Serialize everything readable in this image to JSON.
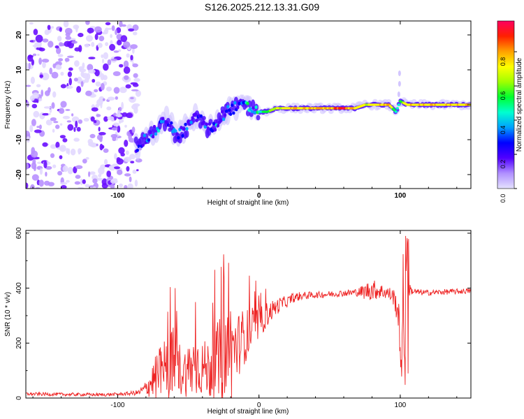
{
  "title": "S126.2025.212.13.31.G09",
  "chart_data": [
    {
      "type": "heatmap",
      "xlabel": "Height of straight line (km)",
      "ylabel": "Frequency (Hz)",
      "xlim": [
        -165,
        150
      ],
      "ylim": [
        -24,
        24
      ],
      "x_ticks": [
        -100,
        0,
        100
      ],
      "y_ticks": [
        -20,
        -10,
        0,
        10,
        20
      ],
      "colorbar": {
        "label": "Normalized spectral amplitude",
        "range": [
          0,
          1
        ],
        "ticks": [
          "0.0",
          "0.2",
          "0.4",
          "0.6",
          "0.8"
        ],
        "colormap": [
          "#e4e2ff",
          "#b090ff",
          "#5000ff",
          "#0000ff",
          "#00a0ff",
          "#00ffd0",
          "#00ff30",
          "#a0ff00",
          "#ffff00",
          "#ffa000",
          "#ff2000",
          "#ff0060"
        ]
      },
      "ridge_frequency_by_height": {
        "x": [
          -87,
          -80,
          -72,
          -65,
          -58,
          -50,
          -43,
          -36,
          -30,
          -24,
          -18,
          -12,
          -6,
          0,
          6,
          12,
          20,
          30,
          40,
          50,
          60,
          68,
          75,
          85,
          92,
          97,
          100,
          105,
          115,
          130,
          150
        ],
        "y": [
          -12,
          -10,
          -7,
          -4,
          -9,
          -6,
          -3,
          -7,
          -6,
          -2,
          -1,
          0,
          -1,
          -2,
          -2,
          -1,
          -1,
          -1,
          -1,
          -1,
          -1,
          -1,
          0,
          0,
          0,
          -2,
          1,
          0,
          0,
          0,
          0
        ],
        "amplitude": [
          0.25,
          0.3,
          0.35,
          0.35,
          0.3,
          0.3,
          0.3,
          0.3,
          0.35,
          0.35,
          0.35,
          0.35,
          0.5,
          0.45,
          0.55,
          0.7,
          0.75,
          0.75,
          0.8,
          0.8,
          0.9,
          0.75,
          0.7,
          0.75,
          0.8,
          0.45,
          0.55,
          0.75,
          0.75,
          0.75,
          0.75
        ]
      },
      "noise_region": {
        "x": [
          -165,
          -85
        ],
        "y": [
          -24,
          24
        ]
      }
    },
    {
      "type": "line",
      "xlabel": "Height of straight line (km)",
      "ylabel": "SNR (10 * v/v)",
      "xlim": [
        -165,
        150
      ],
      "ylim": [
        0,
        610
      ],
      "x_ticks": [
        -100,
        0,
        100
      ],
      "y_ticks": [
        0,
        200,
        400,
        600
      ],
      "series": [
        {
          "color": "#ee2222",
          "x": [
            -165,
            -150,
            -130,
            -110,
            -95,
            -85,
            -80,
            -76,
            -72,
            -68,
            -64,
            -60,
            -56,
            -52,
            -48,
            -44,
            -40,
            -36,
            -32,
            -28,
            -24,
            -20,
            -16,
            -12,
            -8,
            -4,
            0,
            4,
            8,
            12,
            16,
            20,
            24,
            30,
            40,
            50,
            60,
            70,
            75,
            80,
            85,
            90,
            95,
            98,
            100,
            101,
            102,
            103,
            104,
            105,
            106,
            108,
            112,
            120,
            130,
            140,
            150
          ],
          "y": [
            15,
            14,
            13,
            12,
            15,
            20,
            35,
            60,
            80,
            100,
            110,
            120,
            105,
            95,
            110,
            125,
            110,
            105,
            120,
            130,
            150,
            170,
            185,
            215,
            235,
            255,
            270,
            295,
            315,
            330,
            345,
            350,
            365,
            372,
            375,
            378,
            382,
            385,
            388,
            395,
            390,
            385,
            370,
            330,
            210,
            60,
            420,
            110,
            520,
            380,
            400,
            390,
            385,
            383,
            386,
            388,
            390
          ],
          "noise_amplitude": [
            6,
            6,
            6,
            6,
            6,
            10,
            30,
            60,
            90,
            110,
            130,
            150,
            100,
            90,
            110,
            120,
            100,
            110,
            130,
            160,
            190,
            200,
            120,
            110,
            90,
            80,
            60,
            50,
            40,
            30,
            25,
            20,
            18,
            15,
            12,
            12,
            12,
            15,
            30,
            40,
            30,
            25,
            30,
            60,
            80,
            40,
            100,
            60,
            120,
            50,
            30,
            15,
            12,
            10,
            10,
            10,
            10
          ]
        }
      ]
    }
  ]
}
